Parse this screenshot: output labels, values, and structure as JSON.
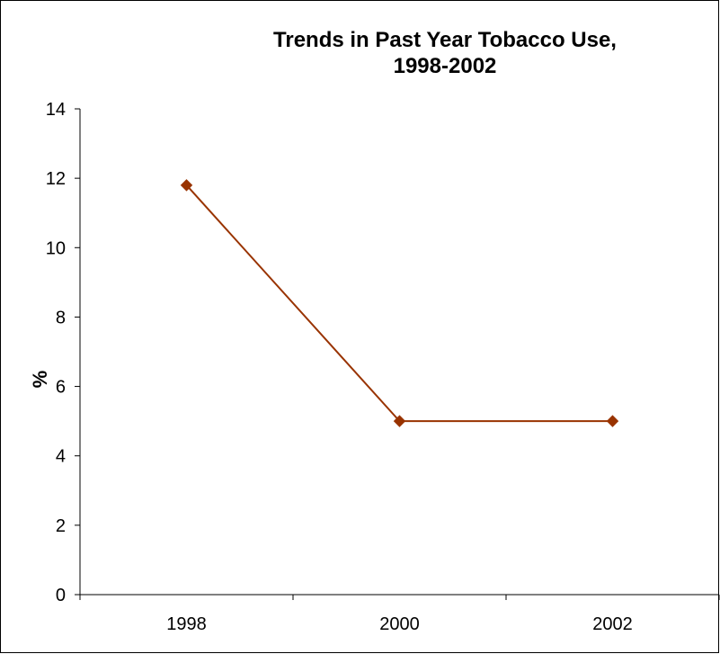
{
  "chart_data": {
    "type": "line",
    "title_lines": [
      "Trends in Past Year Tobacco Use,",
      "1998-2002"
    ],
    "xlabel": "",
    "ylabel": "%",
    "categories": [
      "1998",
      "2000",
      "2002"
    ],
    "series": [
      {
        "values": [
          11.8,
          5.0,
          5.0
        ]
      }
    ],
    "ylim": [
      0,
      14
    ],
    "yticks": [
      "0",
      "2",
      "4",
      "6",
      "8",
      "10",
      "12",
      "14"
    ],
    "grid": false,
    "legend": "none",
    "marker": "diamond",
    "line_color": "#993300",
    "marker_color": "#993300"
  }
}
